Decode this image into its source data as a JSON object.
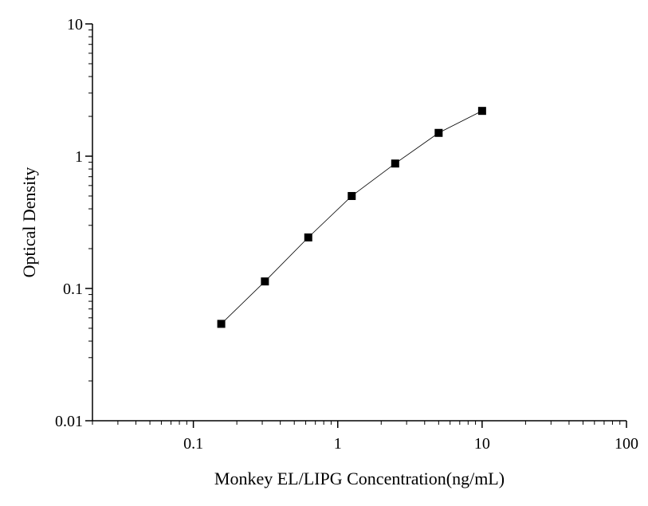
{
  "chart_data": {
    "type": "line",
    "x_label": "Monkey EL/LIPG Concentration(ng/mL)",
    "y_label": "Optical Density",
    "x": [
      0.156,
      0.313,
      0.625,
      1.25,
      2.5,
      5,
      10
    ],
    "series": [
      {
        "color": "#000000",
        "values": [
          0.054,
          0.113,
          0.243,
          0.5,
          0.88,
          1.5,
          2.2
        ]
      }
    ],
    "xscale": "log",
    "yscale": "log",
    "xlim": [
      0.02,
      100
    ],
    "ylim": [
      0.01,
      10
    ],
    "xticks": [
      0.1,
      1,
      10,
      100
    ],
    "yticks": [
      0.01,
      0.1,
      1,
      10
    ],
    "grid": false
  }
}
